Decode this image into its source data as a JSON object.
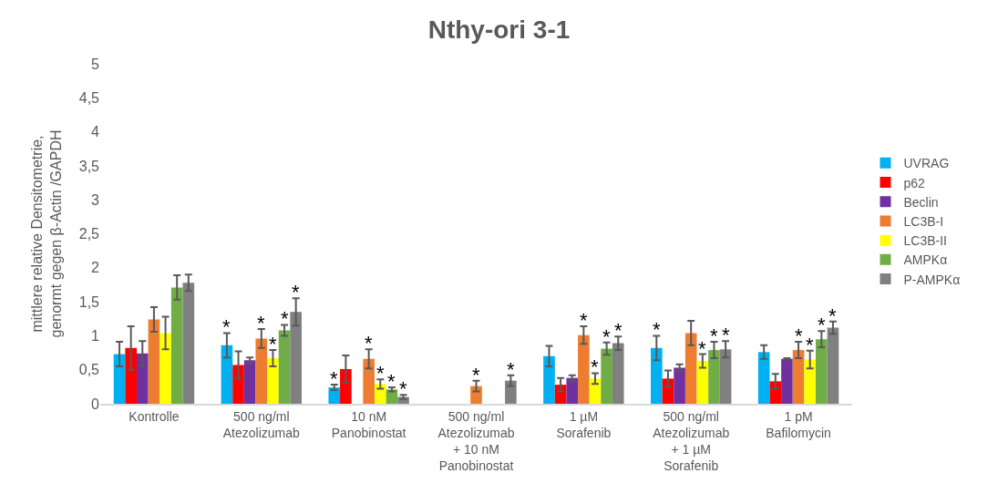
{
  "chart_data": {
    "type": "bar",
    "title": "Nthy-ori 3-1",
    "ylabel": "mittlere relative Densitometrie,\ngenormt gegen β-Actin /GAPDH",
    "categories": [
      "Kontrolle",
      "500 ng/ml\nAtezolizumab",
      "10 nM\nPanobinostat",
      "500 ng/ml\nAtezolizumab\n+ 10 nM\nPanobinostat",
      "1 µM\nSorafenib",
      "500 ng/ml\nAtezolizumab\n+ 1 µM\nSorafenib",
      "1 pM\nBafilomycin"
    ],
    "series": [
      {
        "name": "UVRAG",
        "color": "#00b0f0",
        "values": [
          0.73,
          0.86,
          0.24,
          null,
          0.7,
          0.82,
          0.76
        ],
        "errors": [
          0.18,
          0.18,
          0.04,
          null,
          0.15,
          0.18,
          0.1
        ],
        "value_labels": [
          null,
          "*",
          "*",
          null,
          null,
          "*",
          null
        ]
      },
      {
        "name": "p62",
        "color": "#ff0000",
        "values": [
          0.82,
          0.57,
          0.51,
          null,
          0.28,
          0.37,
          0.33
        ],
        "errors": [
          0.32,
          0.2,
          0.2,
          null,
          0.1,
          0.12,
          0.11
        ],
        "value_labels": [
          null,
          null,
          null,
          null,
          null,
          null,
          null
        ]
      },
      {
        "name": "Beclin",
        "color": "#7030a0",
        "values": [
          0.74,
          0.64,
          null,
          null,
          0.38,
          0.53,
          0.66
        ],
        "errors": [
          0.18,
          0.04,
          null,
          null,
          0.04,
          0.05,
          0.01
        ],
        "value_labels": [
          null,
          null,
          null,
          null,
          null,
          null,
          null
        ]
      },
      {
        "name": "LC3B-I",
        "color": "#ed7d31",
        "values": [
          1.24,
          0.96,
          0.66,
          0.26,
          1.01,
          1.04,
          0.79
        ],
        "errors": [
          0.18,
          0.14,
          0.14,
          0.08,
          0.13,
          0.18,
          0.12
        ],
        "value_labels": [
          null,
          "*",
          "*",
          "*",
          "*",
          null,
          "*"
        ]
      },
      {
        "name": "LC3B-II",
        "color": "#ffff00",
        "values": [
          1.04,
          0.67,
          0.29,
          null,
          0.37,
          0.63,
          0.65
        ],
        "errors": [
          0.24,
          0.12,
          0.07,
          null,
          0.08,
          0.1,
          0.13
        ],
        "value_labels": [
          null,
          "*",
          "*",
          null,
          "*",
          "*",
          "*"
        ]
      },
      {
        "name": "AMPKα",
        "color": "#70ad47",
        "values": [
          1.71,
          1.08,
          0.21,
          null,
          0.81,
          0.79,
          0.95
        ],
        "errors": [
          0.18,
          0.08,
          0.03,
          null,
          0.09,
          0.12,
          0.12
        ],
        "value_labels": [
          null,
          "*",
          "*",
          null,
          "*",
          "*",
          "*"
        ]
      },
      {
        "name": "P-AMPKα",
        "color": "#808080",
        "values": [
          1.78,
          1.35,
          0.1,
          0.34,
          0.89,
          0.8,
          1.12
        ],
        "errors": [
          0.12,
          0.2,
          0.03,
          0.08,
          0.1,
          0.12,
          0.09
        ],
        "value_labels": [
          null,
          "*",
          "*",
          "*",
          "*",
          "*",
          "*"
        ]
      }
    ],
    "ylim": [
      0,
      5
    ],
    "yticks": [
      0,
      {
        "value": 0.5,
        "label": "0,5"
      },
      1,
      {
        "value": 1.5,
        "label": "1,5"
      },
      2,
      {
        "value": 2.5,
        "label": "2,5"
      },
      3,
      {
        "value": 3.5,
        "label": "3,5"
      },
      4,
      {
        "value": 4.5,
        "label": "4,5"
      },
      5
    ],
    "grid": false,
    "legend": "right"
  }
}
